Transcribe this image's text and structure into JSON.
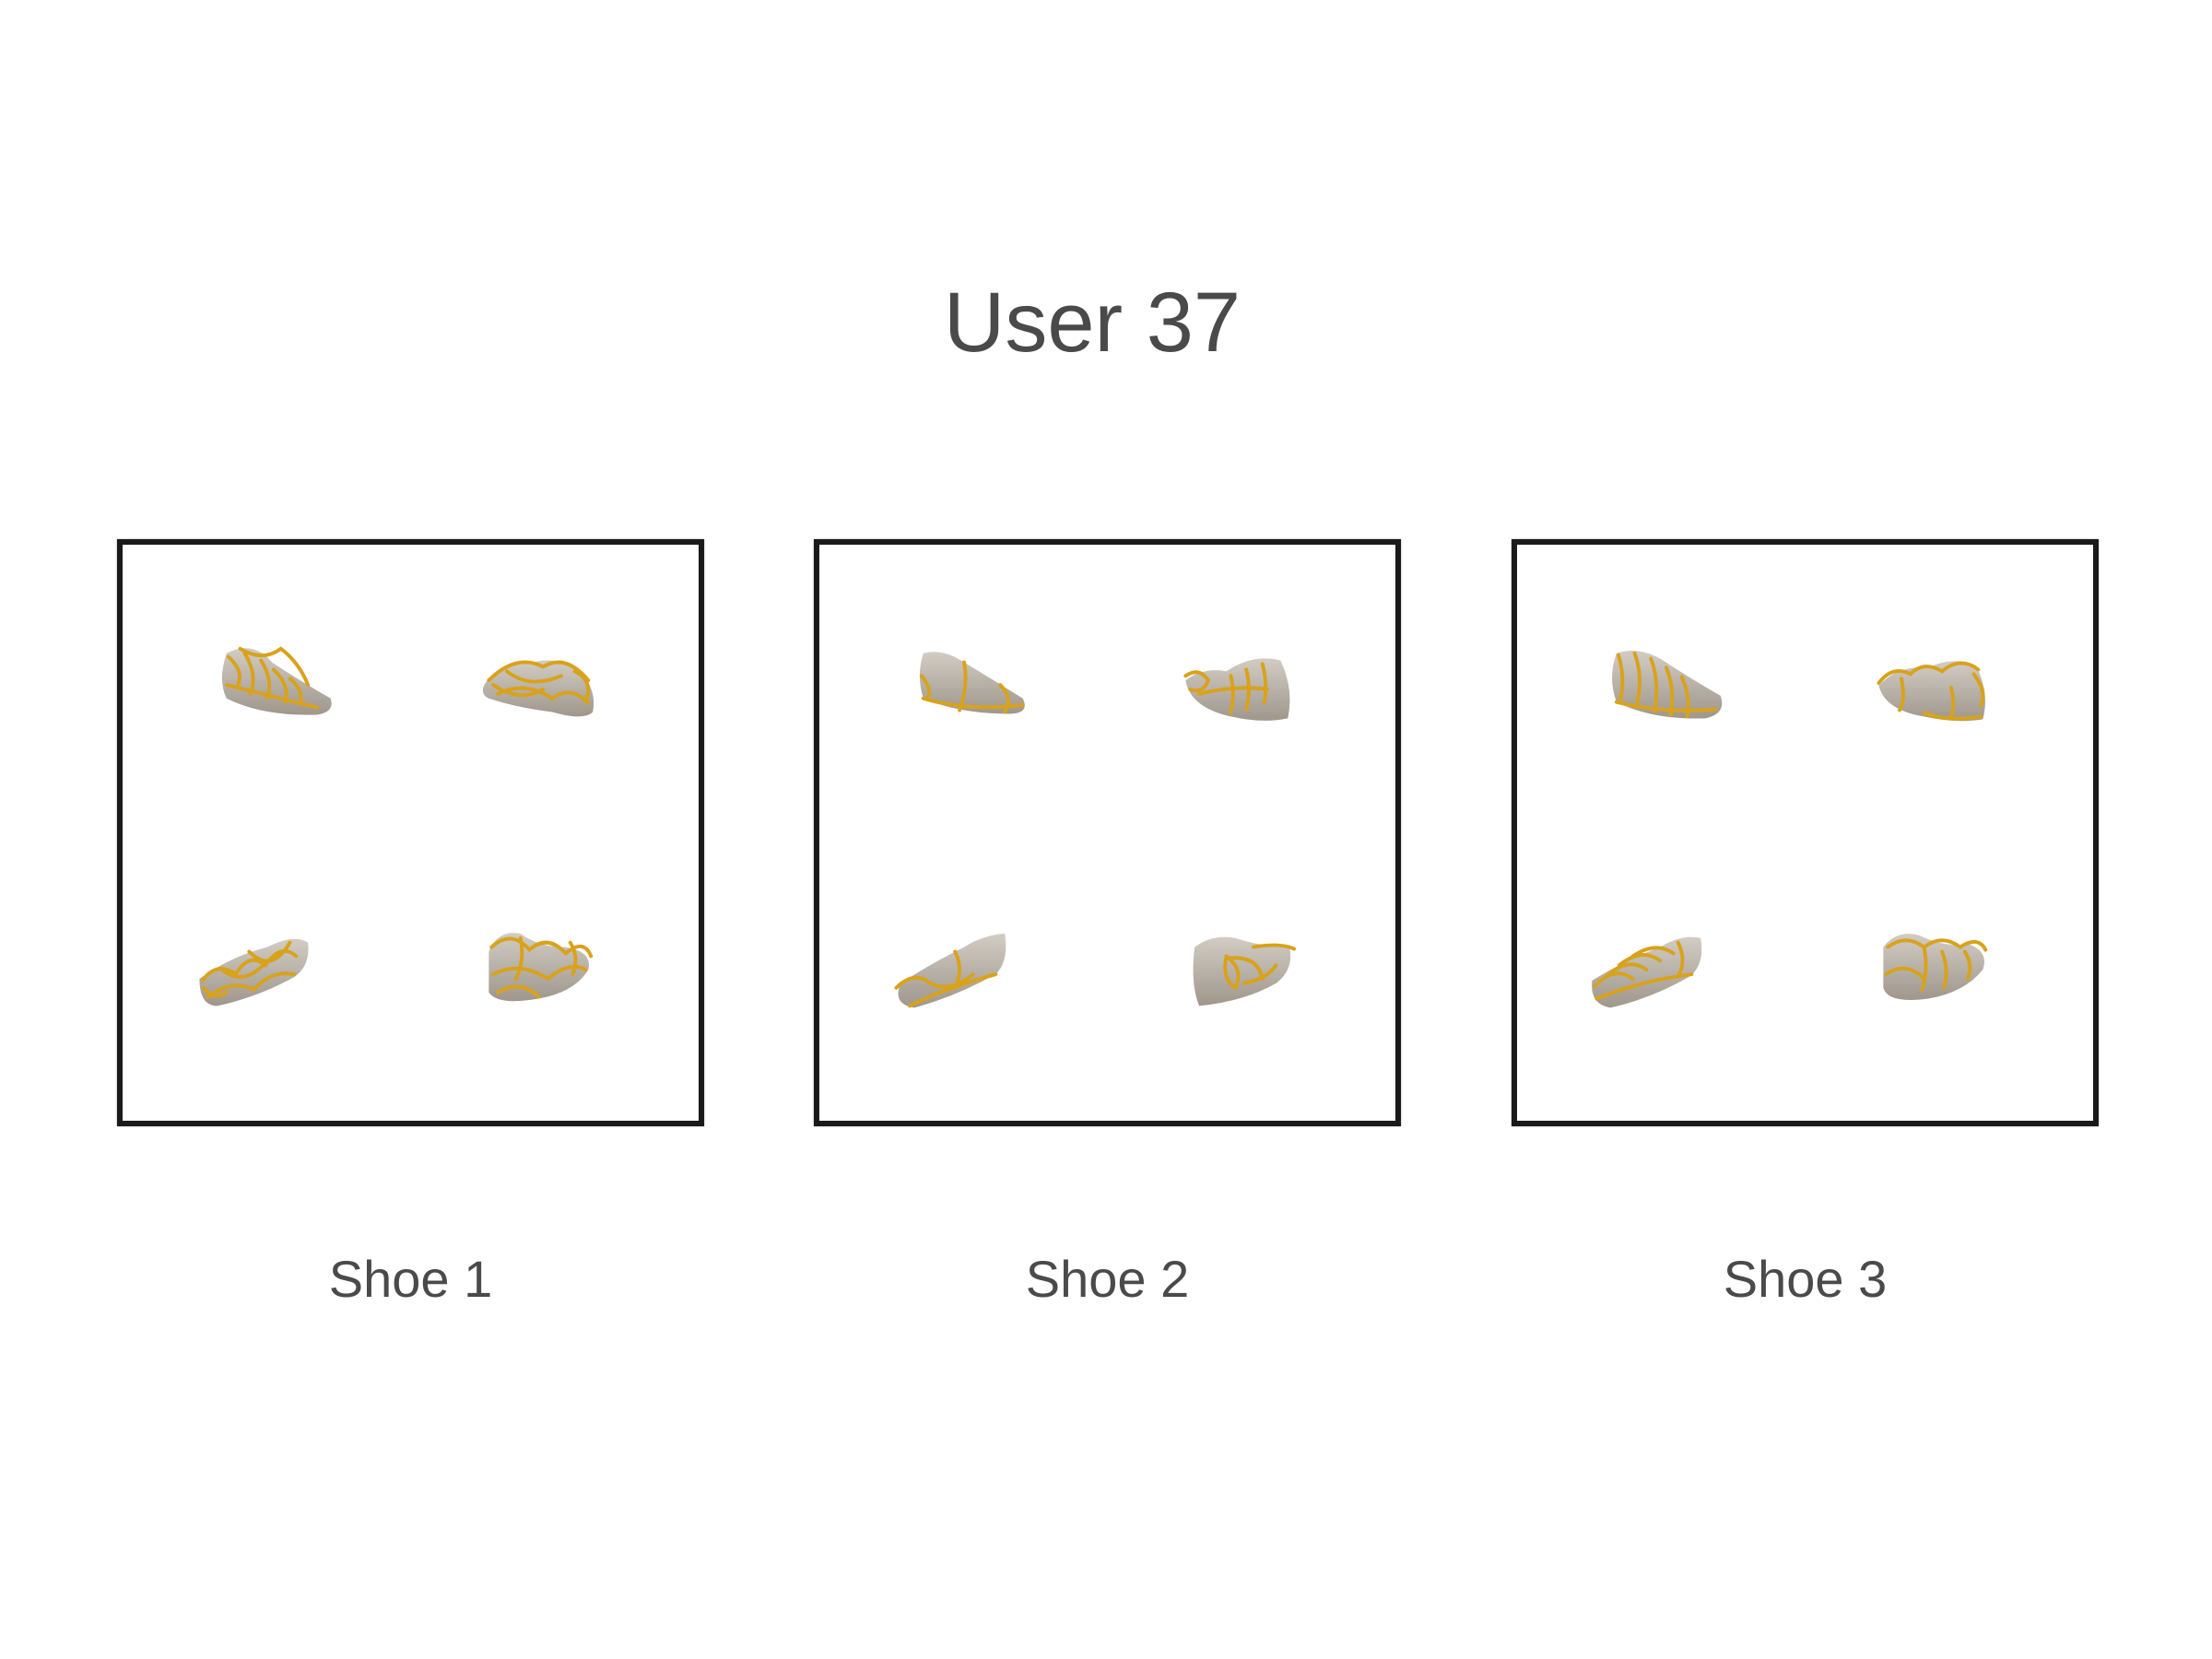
{
  "title": "User 37",
  "colors": {
    "text": "#4a4a4a",
    "frame": "#1a1a1a",
    "shoe_body": "#b8b0a6",
    "strap": "#d9a21b"
  },
  "panels": [
    {
      "label": "Shoe 1",
      "views": [
        {
          "icon": "shoe-render-icon",
          "style": "dense-laces"
        },
        {
          "icon": "shoe-render-icon",
          "style": "dense-laces"
        },
        {
          "icon": "shoe-render-icon",
          "style": "dense-laces"
        },
        {
          "icon": "shoe-render-icon",
          "style": "dense-laces"
        }
      ]
    },
    {
      "label": "Shoe 2",
      "views": [
        {
          "icon": "shoe-render-icon",
          "style": "sparse-straps"
        },
        {
          "icon": "shoe-render-icon",
          "style": "sparse-straps"
        },
        {
          "icon": "shoe-render-icon",
          "style": "sparse-straps"
        },
        {
          "icon": "shoe-render-icon",
          "style": "sparse-straps"
        }
      ]
    },
    {
      "label": "Shoe 3",
      "views": [
        {
          "icon": "shoe-render-icon",
          "style": "parallel-straps"
        },
        {
          "icon": "shoe-render-icon",
          "style": "parallel-straps"
        },
        {
          "icon": "shoe-render-icon",
          "style": "parallel-straps"
        },
        {
          "icon": "shoe-render-icon",
          "style": "parallel-straps"
        }
      ]
    }
  ]
}
